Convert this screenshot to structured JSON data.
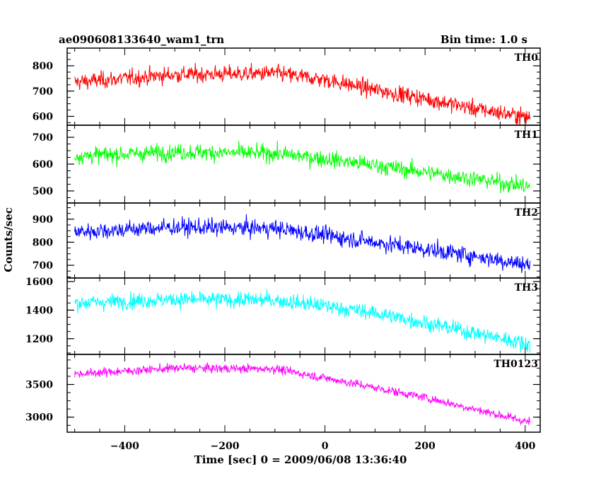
{
  "header": {
    "title": "ae090608133640_wam1_trn",
    "bin_time": "Bin time: 1.0 s"
  },
  "chart_data": {
    "type": "line",
    "xlabel": "Time [sec] 0 = 2009/06/08 13:36:40",
    "ylabel": "Counts/sec",
    "xlim": [
      -515,
      430
    ],
    "x_range": [
      -500,
      410
    ],
    "x_step": 1,
    "x_ticks": [
      -400,
      -200,
      0,
      200,
      400
    ],
    "x_tick_labels": [
      "−400",
      "−200",
      "0",
      "200",
      "400"
    ],
    "grid": false,
    "panels": [
      {
        "name": "TH0",
        "color": "#ff0000",
        "ylim": [
          565,
          870
        ],
        "y_ticks": [
          600,
          700,
          800
        ],
        "y_tick_labels": [
          "600",
          "700",
          "800"
        ],
        "trend_x": [
          -500,
          -300,
          -100,
          0,
          100,
          200,
          300,
          410
        ],
        "trend_y": [
          735,
          765,
          770,
          745,
          705,
          670,
          630,
          595
        ],
        "noise": 30
      },
      {
        "name": "TH1",
        "color": "#00ff00",
        "ylim": [
          455,
          745
        ],
        "y_ticks": [
          500,
          600,
          700
        ],
        "y_tick_labels": [
          "500",
          "600",
          "700"
        ],
        "trend_x": [
          -500,
          -300,
          -100,
          0,
          100,
          200,
          300,
          410
        ],
        "trend_y": [
          630,
          645,
          640,
          620,
          595,
          570,
          545,
          515
        ],
        "noise": 28
      },
      {
        "name": "TH2",
        "color": "#0000ff",
        "ylim": [
          645,
          970
        ],
        "y_ticks": [
          700,
          800,
          900
        ],
        "y_tick_labels": [
          "700",
          "800",
          "900"
        ],
        "trend_x": [
          -500,
          -300,
          -100,
          0,
          100,
          200,
          300,
          410
        ],
        "trend_y": [
          845,
          865,
          860,
          830,
          800,
          770,
          740,
          700
        ],
        "noise": 34
      },
      {
        "name": "TH3",
        "color": "#00ffff",
        "ylim": [
          1090,
          1625
        ],
        "y_ticks": [
          1200,
          1400,
          1600
        ],
        "y_tick_labels": [
          "1200",
          "1400",
          "1600"
        ],
        "trend_x": [
          -500,
          -300,
          -100,
          0,
          100,
          200,
          300,
          410
        ],
        "trend_y": [
          1450,
          1475,
          1470,
          1430,
          1380,
          1310,
          1240,
          1160
        ],
        "noise": 50
      },
      {
        "name": "TH0123",
        "color": "#ff00ff",
        "ylim": [
          2770,
          3960
        ],
        "y_ticks": [
          3000,
          3500
        ],
        "y_tick_labels": [
          "3000",
          "3500"
        ],
        "trend_x": [
          -500,
          -300,
          -100,
          0,
          100,
          200,
          300,
          410
        ],
        "trend_y": [
          3660,
          3750,
          3740,
          3600,
          3450,
          3300,
          3120,
          2920
        ],
        "noise": 60
      }
    ]
  }
}
